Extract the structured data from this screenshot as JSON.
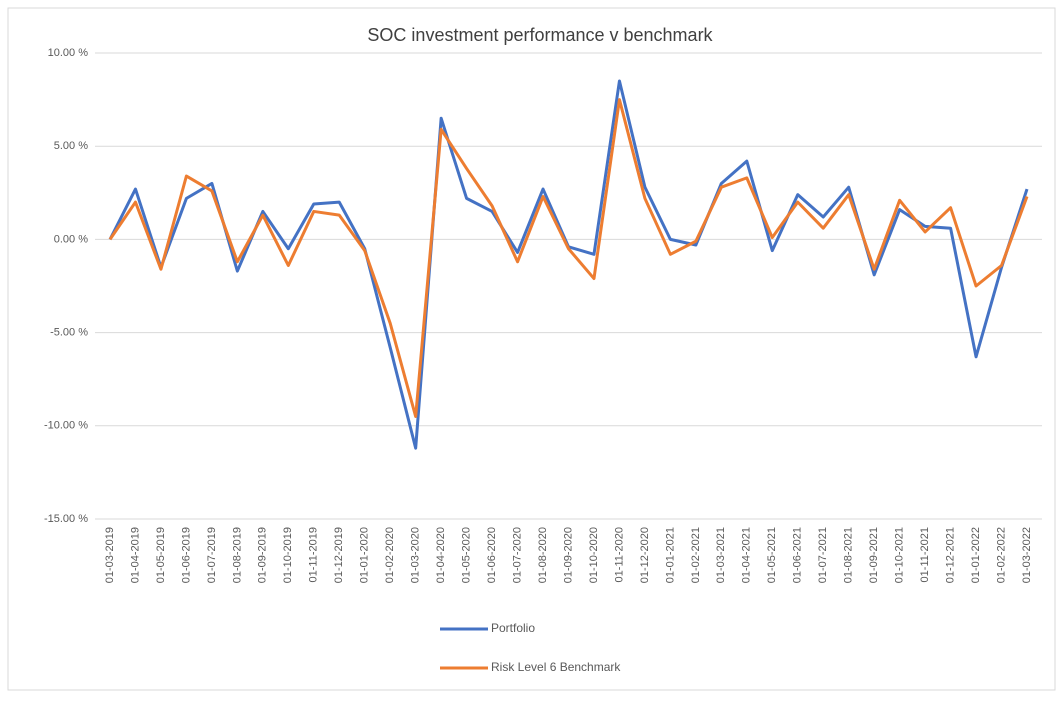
{
  "chart_data": {
    "type": "line",
    "title": "SOC investment performance v benchmark",
    "categories": [
      "01-03-2019",
      "01-04-2019",
      "01-05-2019",
      "01-06-2019",
      "01-07-2019",
      "01-08-2019",
      "01-09-2019",
      "01-10-2019",
      "01-11-2019",
      "01-12-2019",
      "01-01-2020",
      "01-02-2020",
      "01-03-2020",
      "01-04-2020",
      "01-05-2020",
      "01-06-2020",
      "01-07-2020",
      "01-08-2020",
      "01-09-2020",
      "01-10-2020",
      "01-11-2020",
      "01-12-2020",
      "01-01-2021",
      "01-02-2021",
      "01-03-2021",
      "01-04-2021",
      "01-05-2021",
      "01-06-2021",
      "01-07-2021",
      "01-08-2021",
      "01-09-2021",
      "01-10-2021",
      "01-11-2021",
      "01-12-2021",
      "01-01-2022",
      "01-02-2022",
      "01-03-2022"
    ],
    "series": [
      {
        "name": "Portfolio",
        "color": "#4472c4",
        "values": [
          0,
          2.7,
          -1.5,
          2.2,
          3.0,
          -1.7,
          1.5,
          -0.5,
          1.9,
          2.0,
          -0.5,
          -5.8,
          -11.2,
          6.5,
          2.2,
          1.5,
          -0.7,
          2.7,
          -0.4,
          -0.8,
          8.5,
          2.8,
          0,
          -0.3,
          3.0,
          4.2,
          -0.6,
          2.4,
          1.2,
          2.8,
          -1.9,
          1.6,
          0.7,
          0.6,
          -6.3,
          -1.5,
          2.7
        ]
      },
      {
        "name": "Risk Level 6 Benchmark",
        "color": "#ed7d31",
        "values": [
          0,
          2.0,
          -1.6,
          3.4,
          2.6,
          -1.2,
          1.3,
          -1.4,
          1.5,
          1.3,
          -0.6,
          -4.5,
          -9.5,
          5.9,
          3.8,
          1.8,
          -1.2,
          2.3,
          -0.5,
          -2.1,
          7.5,
          2.2,
          -0.8,
          -0.1,
          2.8,
          3.3,
          0.1,
          2.0,
          0.6,
          2.4,
          -1.6,
          2.1,
          0.4,
          1.7,
          -2.5,
          -1.4,
          2.3
        ]
      }
    ],
    "ylim": [
      -15,
      10
    ],
    "yticks": [
      {
        "value": -15,
        "label": "-15.00 %"
      },
      {
        "value": -10,
        "label": "-10.00 %"
      },
      {
        "value": -5,
        "label": "-5.00 %"
      },
      {
        "value": 0,
        "label": "0.00 %"
      },
      {
        "value": 5,
        "label": "5.00 %"
      },
      {
        "value": 10,
        "label": "10.00 %"
      }
    ],
    "grid": true,
    "legend": "bottom"
  }
}
